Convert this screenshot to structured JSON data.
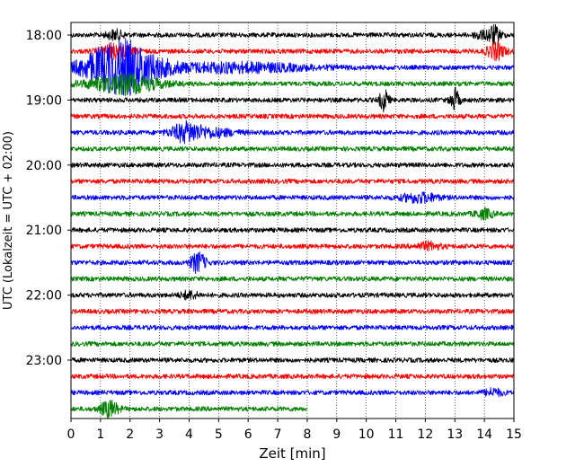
{
  "chart_data": {
    "type": "line",
    "xlabel": "Zeit  [min]",
    "ylabel": "UTC (Lokalzeit = UTC + 02:00)",
    "xlim": [
      0,
      15
    ],
    "x_ticks": [
      "0",
      "1",
      "2",
      "3",
      "4",
      "5",
      "6",
      "7",
      "8",
      "9",
      "10",
      "11",
      "12",
      "13",
      "14",
      "15"
    ],
    "y_tick_labels": [
      "18:00",
      "19:00",
      "20:00",
      "21:00",
      "22:00",
      "23:00"
    ],
    "row_interval_min": 15,
    "row_start": "18:00",
    "rows": [
      {
        "label": "18:00",
        "color": "#000000",
        "end_min": 15,
        "events": [
          {
            "x": 1.5,
            "amp": 5,
            "w": 0.3
          },
          {
            "x": 14.3,
            "amp": 10,
            "w": 0.25
          },
          {
            "x": 13.8,
            "amp": 5,
            "w": 0.15
          }
        ]
      },
      {
        "label": "18:15",
        "color": "#ff0000",
        "end_min": 15,
        "events": [
          {
            "x": 1.5,
            "amp": 8,
            "w": 0.5
          },
          {
            "x": 14.4,
            "amp": 9,
            "w": 0.3
          }
        ]
      },
      {
        "label": "18:30",
        "color": "#0000ff",
        "end_min": 15,
        "events": [
          {
            "x": 1.7,
            "amp": 30,
            "w": 1.2
          },
          {
            "x": 5.5,
            "amp": 5,
            "w": 2.5
          }
        ]
      },
      {
        "label": "18:45",
        "color": "#008000",
        "end_min": 15,
        "events": [
          {
            "x": 1.8,
            "amp": 10,
            "w": 1.2
          }
        ]
      },
      {
        "label": "19:00",
        "color": "#000000",
        "end_min": 15,
        "events": [
          {
            "x": 10.6,
            "amp": 12,
            "w": 0.15
          },
          {
            "x": 13.0,
            "amp": 12,
            "w": 0.15
          }
        ]
      },
      {
        "label": "19:15",
        "color": "#ff0000",
        "end_min": 15,
        "events": []
      },
      {
        "label": "19:30",
        "color": "#0000ff",
        "end_min": 15,
        "events": [
          {
            "x": 3.9,
            "amp": 10,
            "w": 0.5
          },
          {
            "x": 4.8,
            "amp": 4,
            "w": 0.8
          }
        ]
      },
      {
        "label": "19:45",
        "color": "#008000",
        "end_min": 15,
        "events": []
      },
      {
        "label": "20:00",
        "color": "#000000",
        "end_min": 15,
        "events": []
      },
      {
        "label": "20:15",
        "color": "#ff0000",
        "end_min": 15,
        "events": []
      },
      {
        "label": "20:30",
        "color": "#0000ff",
        "end_min": 15,
        "events": [
          {
            "x": 11.8,
            "amp": 5,
            "w": 0.6
          }
        ]
      },
      {
        "label": "20:45",
        "color": "#008000",
        "end_min": 15,
        "events": [
          {
            "x": 14.0,
            "amp": 5,
            "w": 0.3
          }
        ]
      },
      {
        "label": "21:00",
        "color": "#000000",
        "end_min": 15,
        "events": []
      },
      {
        "label": "21:15",
        "color": "#ff0000",
        "end_min": 15,
        "events": [
          {
            "x": 12.1,
            "amp": 4,
            "w": 0.4
          }
        ]
      },
      {
        "label": "21:30",
        "color": "#0000ff",
        "end_min": 15,
        "events": [
          {
            "x": 4.3,
            "amp": 11,
            "w": 0.25
          }
        ]
      },
      {
        "label": "21:45",
        "color": "#008000",
        "end_min": 15,
        "events": []
      },
      {
        "label": "22:00",
        "color": "#000000",
        "end_min": 15,
        "events": [
          {
            "x": 4.0,
            "amp": 4,
            "w": 0.3
          }
        ]
      },
      {
        "label": "22:15",
        "color": "#ff0000",
        "end_min": 15,
        "events": []
      },
      {
        "label": "22:30",
        "color": "#0000ff",
        "end_min": 15,
        "events": []
      },
      {
        "label": "22:45",
        "color": "#008000",
        "end_min": 15,
        "events": []
      },
      {
        "label": "23:00",
        "color": "#000000",
        "end_min": 15,
        "events": []
      },
      {
        "label": "23:15",
        "color": "#ff0000",
        "end_min": 15,
        "events": []
      },
      {
        "label": "23:30",
        "color": "#0000ff",
        "end_min": 15,
        "events": [
          {
            "x": 14.3,
            "amp": 4,
            "w": 0.3
          }
        ]
      },
      {
        "label": "23:45",
        "color": "#008000",
        "end_min": 8,
        "events": [
          {
            "x": 1.3,
            "amp": 9,
            "w": 0.3
          }
        ]
      }
    ],
    "grid": "vertical-dotted"
  }
}
